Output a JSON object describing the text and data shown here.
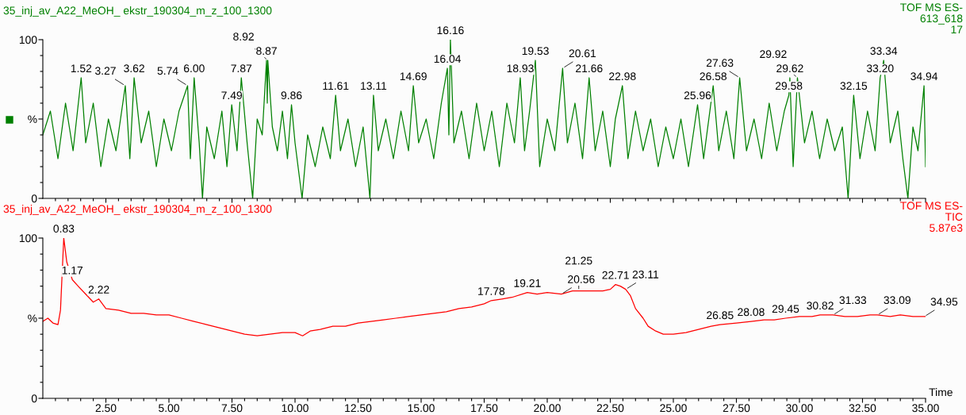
{
  "chart_data": [
    {
      "type": "line",
      "title": "35_inj_av_A22_MeOH_ ekstr_190304_m_z_100_1300",
      "subtitle": "TOF MS ES-\n613_618\n17",
      "tick_labels": "y",
      "grid": false,
      "legend": false,
      "marker": "none",
      "line_style": "solid",
      "xlim": [
        0,
        35
      ],
      "xticks": [
        {
          "value": 0.5,
          "label": null
        },
        {
          "value": 1,
          "label": null
        },
        {
          "value": 1.5,
          "label": null
        },
        {
          "value": 2,
          "label": null
        },
        {
          "value": 2.5,
          "label": null
        },
        {
          "value": 3,
          "label": null
        },
        {
          "value": 3.5,
          "label": null
        },
        {
          "value": 4,
          "label": null
        },
        {
          "value": 4.5,
          "label": null
        },
        {
          "value": 5,
          "label": null
        },
        {
          "value": 5.5,
          "label": null
        },
        {
          "value": 6,
          "label": null
        },
        {
          "value": 6.5,
          "label": null
        },
        {
          "value": 7,
          "label": null
        },
        {
          "value": 7.5,
          "label": null
        },
        {
          "value": 8,
          "label": null
        },
        {
          "value": 8.5,
          "label": null
        },
        {
          "value": 9,
          "label": null
        },
        {
          "value": 9.5,
          "label": null
        },
        {
          "value": 10,
          "label": null
        },
        {
          "value": 10.5,
          "label": null
        },
        {
          "value": 11,
          "label": null
        },
        {
          "value": 11.5,
          "label": null
        },
        {
          "value": 12,
          "label": null
        },
        {
          "value": 12.5,
          "label": null
        },
        {
          "value": 13,
          "label": null
        },
        {
          "value": 13.5,
          "label": null
        },
        {
          "value": 14,
          "label": null
        },
        {
          "value": 14.5,
          "label": null
        },
        {
          "value": 15,
          "label": null
        },
        {
          "value": 15.5,
          "label": null
        },
        {
          "value": 16,
          "label": null
        },
        {
          "value": 16.5,
          "label": null
        },
        {
          "value": 17,
          "label": null
        },
        {
          "value": 17.5,
          "label": null
        },
        {
          "value": 18,
          "label": null
        },
        {
          "value": 18.5,
          "label": null
        },
        {
          "value": 19,
          "label": null
        },
        {
          "value": 19.5,
          "label": null
        },
        {
          "value": 20,
          "label": null
        },
        {
          "value": 20.5,
          "label": null
        },
        {
          "value": 21,
          "label": null
        },
        {
          "value": 21.5,
          "label": null
        },
        {
          "value": 22,
          "label": null
        },
        {
          "value": 22.5,
          "label": null
        },
        {
          "value": 23,
          "label": null
        },
        {
          "value": 23.5,
          "label": null
        },
        {
          "value": 24,
          "label": null
        },
        {
          "value": 24.5,
          "label": null
        },
        {
          "value": 25,
          "label": null
        },
        {
          "value": 25.5,
          "label": null
        },
        {
          "value": 26,
          "label": null
        },
        {
          "value": 26.5,
          "label": null
        },
        {
          "value": 27,
          "label": null
        },
        {
          "value": 27.5,
          "label": null
        },
        {
          "value": 28,
          "label": null
        },
        {
          "value": 28.5,
          "label": null
        },
        {
          "value": 29,
          "label": null
        },
        {
          "value": 29.5,
          "label": null
        },
        {
          "value": 30,
          "label": null
        },
        {
          "value": 30.5,
          "label": null
        },
        {
          "value": 31,
          "label": null
        },
        {
          "value": 31.5,
          "label": null
        },
        {
          "value": 32,
          "label": null
        },
        {
          "value": 32.5,
          "label": null
        },
        {
          "value": 33,
          "label": null
        },
        {
          "value": 33.5,
          "label": null
        },
        {
          "value": 34,
          "label": null
        },
        {
          "value": 34.5,
          "label": null
        },
        {
          "value": 35,
          "label": null
        }
      ],
      "ylim": [
        0,
        100
      ],
      "yticks": [
        0,
        {
          "value": 10,
          "label": null
        },
        {
          "value": 20,
          "label": null
        },
        {
          "value": 30,
          "label": null
        },
        {
          "value": 40,
          "label": null
        },
        {
          "value": 50,
          "label": "%"
        },
        {
          "value": 60,
          "label": null
        },
        {
          "value": 70,
          "label": null
        },
        {
          "value": 80,
          "label": null
        },
        {
          "value": 90,
          "label": null
        },
        100
      ],
      "series": [
        {
          "color": "#008000",
          "x": [
            0.0,
            0.3,
            0.6,
            0.9,
            1.2,
            1.52,
            1.7,
            2.0,
            2.3,
            2.6,
            2.9,
            3.27,
            3.45,
            3.62,
            3.9,
            4.2,
            4.5,
            4.8,
            5.1,
            5.4,
            5.74,
            5.85,
            6.0,
            6.2,
            6.33,
            6.5,
            6.8,
            7.1,
            7.3,
            7.49,
            7.7,
            7.87,
            8.1,
            8.32,
            8.5,
            8.7,
            8.87,
            8.9,
            8.92,
            9.1,
            9.3,
            9.5,
            9.7,
            9.86,
            10.0,
            10.28,
            10.5,
            10.8,
            11.1,
            11.4,
            11.61,
            11.8,
            12.1,
            12.4,
            12.7,
            12.97,
            13.11,
            13.3,
            13.6,
            13.9,
            14.2,
            14.5,
            14.69,
            14.9,
            15.2,
            15.5,
            15.8,
            16.04,
            16.1,
            16.16,
            16.3,
            16.6,
            16.9,
            17.2,
            17.5,
            17.8,
            18.1,
            18.4,
            18.7,
            18.93,
            19.1,
            19.3,
            19.53,
            19.7,
            20.0,
            20.3,
            20.61,
            20.8,
            21.1,
            21.4,
            21.66,
            21.9,
            22.2,
            22.5,
            22.7,
            22.98,
            23.2,
            23.5,
            23.8,
            24.1,
            24.4,
            24.7,
            25.0,
            25.3,
            25.6,
            25.96,
            26.2,
            26.58,
            26.8,
            27.1,
            27.4,
            27.63,
            27.9,
            28.2,
            28.5,
            28.8,
            29.1,
            29.4,
            29.58,
            29.62,
            29.75,
            29.92,
            30.2,
            30.5,
            30.8,
            31.1,
            31.4,
            31.7,
            31.93,
            32.15,
            32.4,
            32.7,
            33.0,
            33.2,
            33.34,
            33.6,
            33.9,
            34.1,
            34.3,
            34.5,
            34.7,
            34.94,
            35.0
          ],
          "values": [
            40,
            55,
            25,
            60,
            30,
            76,
            35,
            60,
            20,
            50,
            30,
            71,
            25,
            76,
            35,
            55,
            20,
            50,
            30,
            55,
            71,
            25,
            76,
            35,
            0,
            45,
            25,
            55,
            20,
            59,
            30,
            76,
            35,
            0,
            50,
            40,
            87,
            60,
            87,
            45,
            30,
            55,
            25,
            59,
            35,
            0,
            40,
            20,
            45,
            25,
            65,
            30,
            50,
            20,
            45,
            0,
            65,
            30,
            50,
            25,
            55,
            30,
            71,
            35,
            50,
            25,
            60,
            82,
            40,
            100,
            35,
            55,
            25,
            60,
            30,
            55,
            20,
            60,
            35,
            76,
            30,
            55,
            87,
            20,
            50,
            30,
            82,
            35,
            60,
            25,
            76,
            30,
            55,
            20,
            50,
            71,
            25,
            55,
            30,
            50,
            20,
            45,
            25,
            50,
            20,
            59,
            25,
            71,
            30,
            55,
            25,
            76,
            30,
            50,
            25,
            60,
            30,
            55,
            65,
            76,
            20,
            76,
            35,
            55,
            25,
            50,
            30,
            45,
            0,
            65,
            25,
            55,
            30,
            76,
            87,
            35,
            55,
            25,
            0,
            45,
            30,
            71,
            20
          ]
        }
      ],
      "annotations": [
        {
          "text": "1.52",
          "x": 1.52,
          "y": 76
        },
        {
          "text": "3.27",
          "x": 3.27,
          "y": 71
        },
        {
          "text": "3.62",
          "x": 3.62,
          "y": 76
        },
        {
          "text": "5.74",
          "x": 5.74,
          "y": 71
        },
        {
          "text": "6.00",
          "x": 6.0,
          "y": 76
        },
        {
          "text": "7.49",
          "x": 7.49,
          "y": 59
        },
        {
          "text": "7.87",
          "x": 7.87,
          "y": 76
        },
        {
          "text": "8.87",
          "x": 8.87,
          "y": 87
        },
        {
          "text": "8.92",
          "x": 8.92,
          "y": 87
        },
        {
          "text": "9.86",
          "x": 9.86,
          "y": 59
        },
        {
          "text": "11.61",
          "x": 11.61,
          "y": 65
        },
        {
          "text": "13.11",
          "x": 13.11,
          "y": 65
        },
        {
          "text": "14.69",
          "x": 14.69,
          "y": 71
        },
        {
          "text": "16.04",
          "x": 16.04,
          "y": 82
        },
        {
          "text": "16.16",
          "x": 16.16,
          "y": 100
        },
        {
          "text": "18.93",
          "x": 18.93,
          "y": 76
        },
        {
          "text": "19.53",
          "x": 19.53,
          "y": 87
        },
        {
          "text": "20.61",
          "x": 20.61,
          "y": 82
        },
        {
          "text": "21.66",
          "x": 21.66,
          "y": 76
        },
        {
          "text": "22.98",
          "x": 22.98,
          "y": 71
        },
        {
          "text": "25.96",
          "x": 25.96,
          "y": 59
        },
        {
          "text": "26.58",
          "x": 26.58,
          "y": 71
        },
        {
          "text": "27.63",
          "x": 27.63,
          "y": 76
        },
        {
          "text": "29.58",
          "x": 29.58,
          "y": 65
        },
        {
          "text": "29.62",
          "x": 29.62,
          "y": 76
        },
        {
          "text": "29.92",
          "x": 29.92,
          "y": 76
        },
        {
          "text": "32.15",
          "x": 32.15,
          "y": 65
        },
        {
          "text": "33.20",
          "x": 33.2,
          "y": 76
        },
        {
          "text": "33.34",
          "x": 33.34,
          "y": 87
        },
        {
          "text": "34.94",
          "x": 34.94,
          "y": 71
        }
      ]
    },
    {
      "type": "line",
      "title": "35_inj_av_A22_MeOH_ ekstr_190304_m_z_100_1300",
      "subtitle": "TOF MS ES-\nTIC\n5.87e3",
      "xlabel": "Time",
      "grid": false,
      "legend": false,
      "marker": "none",
      "line_style": "solid",
      "xlim": [
        0,
        35
      ],
      "xticks": [
        {
          "value": 0.5,
          "label": null
        },
        {
          "value": 1,
          "label": null
        },
        {
          "value": 1.5,
          "label": null
        },
        {
          "value": 2,
          "label": null
        },
        {
          "value": 2.5,
          "label": "2.50"
        },
        {
          "value": 3,
          "label": null
        },
        {
          "value": 3.5,
          "label": null
        },
        {
          "value": 4,
          "label": null
        },
        {
          "value": 4.5,
          "label": null
        },
        {
          "value": 5,
          "label": "5.00"
        },
        {
          "value": 5.5,
          "label": null
        },
        {
          "value": 6,
          "label": null
        },
        {
          "value": 6.5,
          "label": null
        },
        {
          "value": 7,
          "label": null
        },
        {
          "value": 7.5,
          "label": "7.50"
        },
        {
          "value": 8,
          "label": null
        },
        {
          "value": 8.5,
          "label": null
        },
        {
          "value": 9,
          "label": null
        },
        {
          "value": 9.5,
          "label": null
        },
        {
          "value": 10,
          "label": "10.00"
        },
        {
          "value": 10.5,
          "label": null
        },
        {
          "value": 11,
          "label": null
        },
        {
          "value": 11.5,
          "label": null
        },
        {
          "value": 12,
          "label": null
        },
        {
          "value": 12.5,
          "label": "12.50"
        },
        {
          "value": 13,
          "label": null
        },
        {
          "value": 13.5,
          "label": null
        },
        {
          "value": 14,
          "label": null
        },
        {
          "value": 14.5,
          "label": null
        },
        {
          "value": 15,
          "label": "15.00"
        },
        {
          "value": 15.5,
          "label": null
        },
        {
          "value": 16,
          "label": null
        },
        {
          "value": 16.5,
          "label": null
        },
        {
          "value": 17,
          "label": null
        },
        {
          "value": 17.5,
          "label": "17.50"
        },
        {
          "value": 18,
          "label": null
        },
        {
          "value": 18.5,
          "label": null
        },
        {
          "value": 19,
          "label": null
        },
        {
          "value": 19.5,
          "label": null
        },
        {
          "value": 20,
          "label": "20.00"
        },
        {
          "value": 20.5,
          "label": null
        },
        {
          "value": 21,
          "label": null
        },
        {
          "value": 21.5,
          "label": null
        },
        {
          "value": 22,
          "label": null
        },
        {
          "value": 22.5,
          "label": "22.50"
        },
        {
          "value": 23,
          "label": null
        },
        {
          "value": 23.5,
          "label": null
        },
        {
          "value": 24,
          "label": null
        },
        {
          "value": 24.5,
          "label": null
        },
        {
          "value": 25,
          "label": "25.00"
        },
        {
          "value": 25.5,
          "label": null
        },
        {
          "value": 26,
          "label": null
        },
        {
          "value": 26.5,
          "label": null
        },
        {
          "value": 27,
          "label": null
        },
        {
          "value": 27.5,
          "label": "27.50"
        },
        {
          "value": 28,
          "label": null
        },
        {
          "value": 28.5,
          "label": null
        },
        {
          "value": 29,
          "label": null
        },
        {
          "value": 29.5,
          "label": null
        },
        {
          "value": 30,
          "label": "30.00"
        },
        {
          "value": 30.5,
          "label": null
        },
        {
          "value": 31,
          "label": null
        },
        {
          "value": 31.5,
          "label": null
        },
        {
          "value": 32,
          "label": null
        },
        {
          "value": 32.5,
          "label": "32.50"
        },
        {
          "value": 33,
          "label": null
        },
        {
          "value": 33.5,
          "label": null
        },
        {
          "value": 34,
          "label": null
        },
        {
          "value": 34.5,
          "label": null
        },
        {
          "value": 35,
          "label": "35.00"
        }
      ],
      "ylim": [
        0,
        100
      ],
      "yticks": [
        0,
        {
          "value": 10,
          "label": null
        },
        {
          "value": 20,
          "label": null
        },
        {
          "value": 30,
          "label": null
        },
        {
          "value": 40,
          "label": null
        },
        {
          "value": 50,
          "label": "%"
        },
        {
          "value": 60,
          "label": null
        },
        {
          "value": 70,
          "label": null
        },
        {
          "value": 80,
          "label": null
        },
        {
          "value": 90,
          "label": null
        },
        100
      ],
      "series": [
        {
          "color": "#ff0000",
          "x": [
            0.0,
            0.2,
            0.4,
            0.6,
            0.7,
            0.83,
            0.95,
            1.17,
            1.4,
            1.7,
            2.0,
            2.22,
            2.5,
            3.0,
            3.5,
            4.0,
            4.5,
            5.0,
            5.5,
            6.0,
            6.5,
            7.0,
            7.5,
            8.0,
            8.5,
            9.0,
            9.5,
            10.0,
            10.3,
            10.6,
            11.0,
            11.5,
            12.0,
            12.5,
            13.0,
            13.5,
            14.0,
            14.5,
            15.0,
            15.5,
            16.0,
            16.5,
            17.0,
            17.5,
            17.78,
            18.2,
            18.6,
            19.21,
            19.6,
            20.0,
            20.56,
            21.0,
            21.25,
            21.7,
            22.2,
            22.5,
            22.71,
            22.9,
            23.11,
            23.3,
            23.5,
            23.8,
            24.0,
            24.3,
            24.6,
            25.0,
            25.5,
            26.0,
            26.5,
            26.85,
            27.5,
            28.08,
            28.6,
            29.0,
            29.45,
            30.0,
            30.5,
            30.82,
            31.33,
            31.8,
            32.3,
            32.8,
            33.09,
            33.6,
            34.0,
            34.5,
            34.95,
            35.0
          ],
          "values": [
            48,
            50,
            47,
            46,
            55,
            100,
            85,
            74,
            70,
            65,
            60,
            62,
            56,
            55,
            53,
            53,
            52,
            52,
            50,
            48,
            46,
            44,
            42,
            40,
            39,
            40,
            41,
            41,
            39,
            42,
            43,
            45,
            45,
            47,
            48,
            49,
            50,
            51,
            52,
            53,
            54,
            56,
            57,
            59,
            61,
            62,
            63,
            66,
            65,
            66,
            65,
            67,
            67,
            67,
            67,
            68,
            71,
            70,
            68,
            64,
            56,
            50,
            45,
            42,
            40,
            40,
            41,
            43,
            45,
            46,
            47,
            48,
            49,
            49,
            50,
            51,
            51,
            52,
            52,
            51,
            51,
            52,
            52,
            51,
            52,
            51,
            51,
            51
          ]
        }
      ],
      "annotations": [
        {
          "text": "0.83",
          "x": 0.83,
          "y": 100
        },
        {
          "text": "1.17",
          "x": 1.17,
          "y": 74
        },
        {
          "text": "2.22",
          "x": 2.22,
          "y": 62
        },
        {
          "text": "17.78",
          "x": 17.78,
          "y": 61
        },
        {
          "text": "19.21",
          "x": 19.21,
          "y": 66
        },
        {
          "text": "20.56",
          "x": 20.56,
          "y": 65
        },
        {
          "text": "21.25",
          "x": 21.25,
          "y": 67
        },
        {
          "text": "22.71",
          "x": 22.71,
          "y": 71
        },
        {
          "text": "23.11",
          "x": 23.11,
          "y": 68
        },
        {
          "text": "26.85",
          "x": 26.85,
          "y": 46
        },
        {
          "text": "28.08",
          "x": 28.08,
          "y": 48
        },
        {
          "text": "29.45",
          "x": 29.45,
          "y": 50
        },
        {
          "text": "30.82",
          "x": 30.82,
          "y": 52
        },
        {
          "text": "31.33",
          "x": 31.33,
          "y": 52
        },
        {
          "text": "33.09",
          "x": 33.09,
          "y": 52
        },
        {
          "text": "34.95",
          "x": 34.95,
          "y": 51
        }
      ]
    }
  ]
}
